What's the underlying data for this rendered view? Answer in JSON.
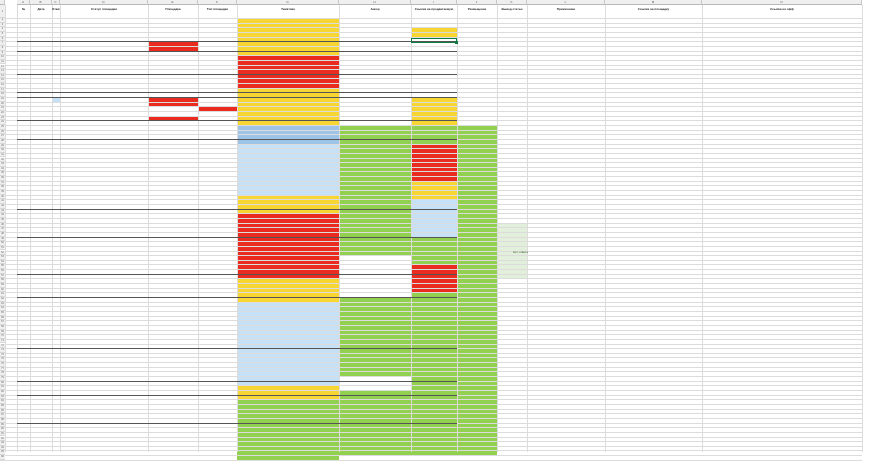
{
  "sheet": {
    "name": "Sheet1",
    "columns": [
      "A",
      "B",
      "C",
      "D",
      "E",
      "F",
      "G",
      "H",
      "I",
      "J",
      "K",
      "L",
      "M",
      "N"
    ],
    "headers": [
      "№",
      "Дата",
      "Ответственный",
      "Статус площадки",
      "Площадка",
      "Тип площадки",
      "Тематика",
      "Анкор",
      "Ссылка на продвигаемую",
      "Размещение",
      "Вывод статьи",
      "Примечание",
      "Ссылка на площадку",
      "Ссылка на офф"
    ]
  },
  "colors": {
    "yellow": "#f7d533",
    "green": "#92d050",
    "red": "#ea2b1f",
    "blue": "#9dc3e6",
    "light_blue": "#c6e0f5",
    "light_green": "#e2efda",
    "selection": "#107c41"
  },
  "notes": [
    "Нет ответа"
  ],
  "rows_text": []
}
